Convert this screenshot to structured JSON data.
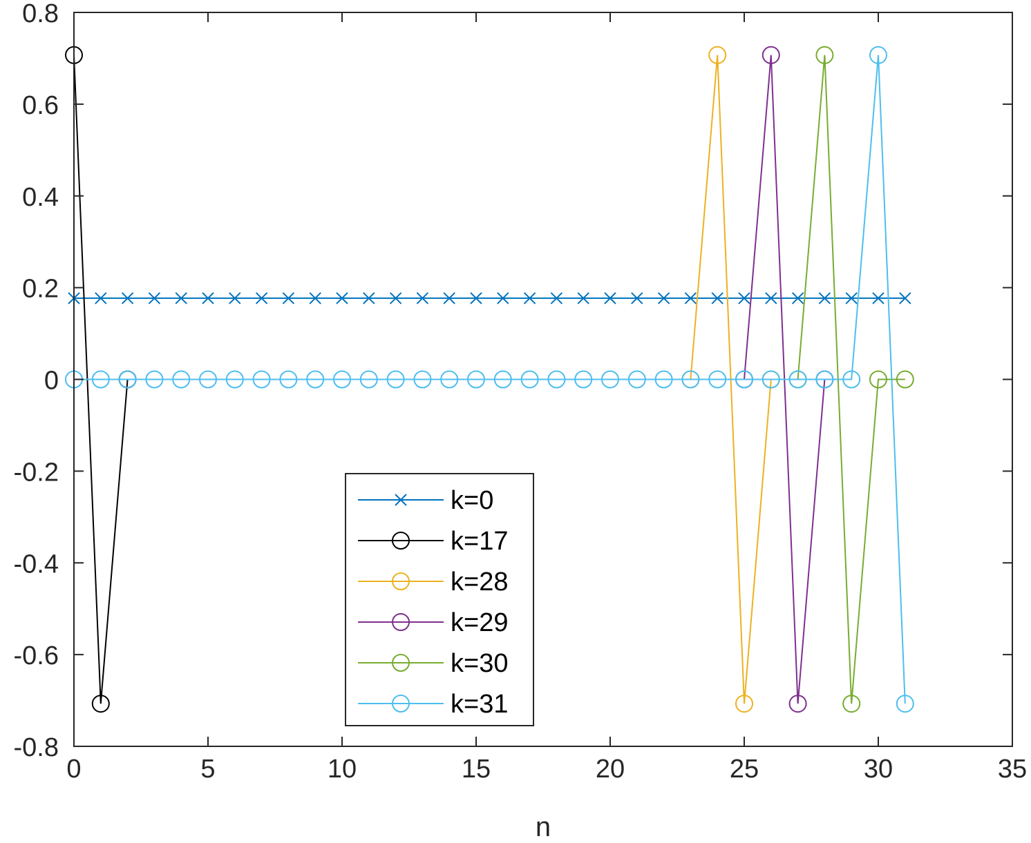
{
  "chart_data": {
    "type": "line",
    "title": "",
    "xlabel": "n",
    "ylabel": "",
    "xlim": [
      0,
      35
    ],
    "ylim": [
      -0.8,
      0.8
    ],
    "xticks": [
      0,
      5,
      10,
      15,
      20,
      25,
      30,
      35
    ],
    "yticks": [
      -0.8,
      -0.6,
      -0.4,
      -0.2,
      0,
      0.2,
      0.4,
      0.6,
      0.8
    ],
    "xtick_labels": [
      "0",
      "5",
      "10",
      "15",
      "20",
      "25",
      "30",
      "35"
    ],
    "ytick_labels": [
      "-0.8",
      "-0.6",
      "-0.4",
      "-0.2",
      "0",
      "0.2",
      "0.4",
      "0.6",
      "0.8"
    ],
    "grid": false,
    "legend_position": "bottom-center",
    "series": [
      {
        "name": "k=0",
        "marker": "x",
        "color": "#0072BD",
        "x": [
          0,
          1,
          2,
          3,
          4,
          5,
          6,
          7,
          8,
          9,
          10,
          11,
          12,
          13,
          14,
          15,
          16,
          17,
          18,
          19,
          20,
          21,
          22,
          23,
          24,
          25,
          26,
          27,
          28,
          29,
          30,
          31
        ],
        "y": [
          0.177,
          0.177,
          0.177,
          0.177,
          0.177,
          0.177,
          0.177,
          0.177,
          0.177,
          0.177,
          0.177,
          0.177,
          0.177,
          0.177,
          0.177,
          0.177,
          0.177,
          0.177,
          0.177,
          0.177,
          0.177,
          0.177,
          0.177,
          0.177,
          0.177,
          0.177,
          0.177,
          0.177,
          0.177,
          0.177,
          0.177,
          0.177
        ]
      },
      {
        "name": "k=17",
        "marker": "o",
        "color": "#000000",
        "x": [
          0,
          1,
          2
        ],
        "y": [
          0.707,
          -0.707,
          0
        ]
      },
      {
        "name": "k=28",
        "marker": "o",
        "color": "#EDB120",
        "x": [
          23,
          24,
          25,
          26
        ],
        "y": [
          0,
          0.707,
          -0.707,
          0
        ]
      },
      {
        "name": "k=29",
        "marker": "o",
        "color": "#7E2F8E",
        "x": [
          25,
          26,
          27,
          28
        ],
        "y": [
          0,
          0.707,
          -0.707,
          0
        ]
      },
      {
        "name": "k=30",
        "marker": "o",
        "color": "#77AC30",
        "x": [
          27,
          28,
          29,
          30,
          31
        ],
        "y": [
          0,
          0.707,
          -0.707,
          0,
          0
        ]
      },
      {
        "name": "k=31",
        "marker": "o",
        "color": "#4DBEEE",
        "x": [
          0,
          1,
          2,
          3,
          4,
          5,
          6,
          7,
          8,
          9,
          10,
          11,
          12,
          13,
          14,
          15,
          16,
          17,
          18,
          19,
          20,
          21,
          22,
          23,
          24,
          25,
          26,
          27,
          28,
          29,
          30,
          31
        ],
        "y": [
          0,
          0,
          0,
          0,
          0,
          0,
          0,
          0,
          0,
          0,
          0,
          0,
          0,
          0,
          0,
          0,
          0,
          0,
          0,
          0,
          0,
          0,
          0,
          0,
          0,
          0,
          0,
          0,
          0,
          0,
          0.707,
          -0.707
        ]
      }
    ]
  }
}
